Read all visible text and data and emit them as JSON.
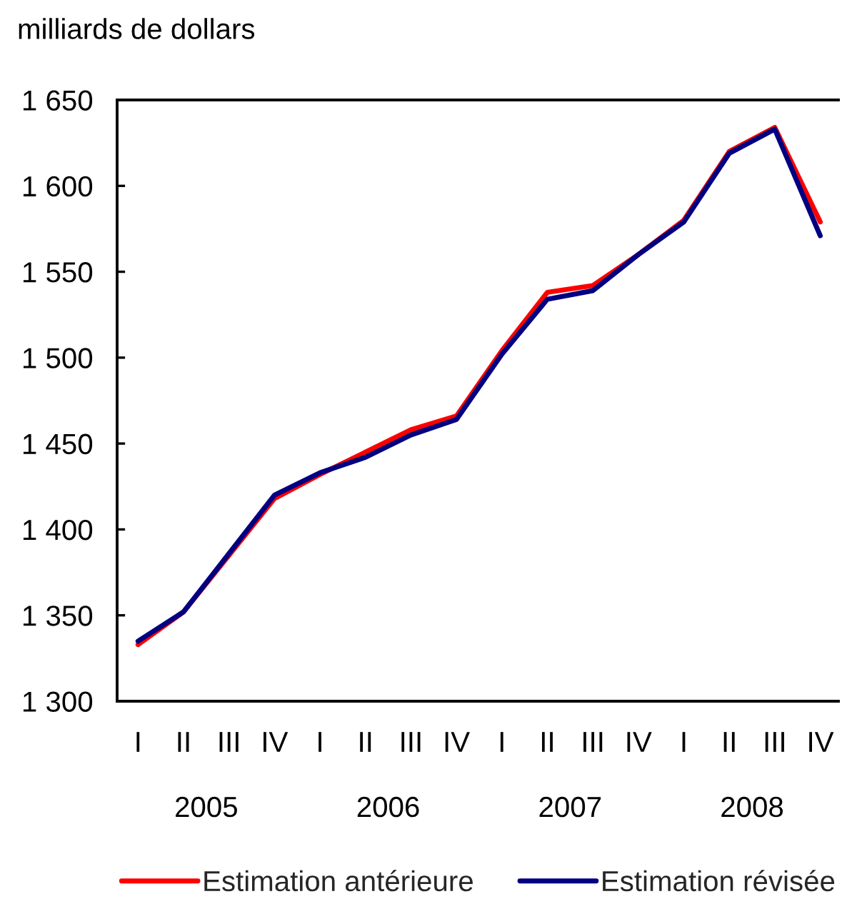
{
  "chart_data": {
    "type": "line",
    "ylabel": "milliards de dollars",
    "categories": [
      "I",
      "II",
      "III",
      "IV",
      "I",
      "II",
      "III",
      "IV",
      "I",
      "II",
      "III",
      "IV",
      "I",
      "II",
      "III",
      "IV"
    ],
    "annotations": [
      "2005",
      "2006",
      "2007",
      "2008"
    ],
    "series": [
      {
        "name": "Estimation antérieure",
        "color": "#ff0000",
        "values": [
          1333,
          1352,
          1385,
          1418,
          1432,
          1445,
          1458,
          1466,
          1504,
          1538,
          1542,
          1560,
          1580,
          1620,
          1634,
          1579
        ]
      },
      {
        "name": "Estimation révisée",
        "color": "#000080",
        "values": [
          1335,
          1352,
          1386,
          1420,
          1433,
          1442,
          1455,
          1464,
          1502,
          1534,
          1539,
          1560,
          1579,
          1619,
          1633,
          1571
        ]
      }
    ],
    "ylim": [
      1300,
      1650
    ],
    "yticks": [
      {
        "value": 1300,
        "label": "1 300"
      },
      {
        "value": 1350,
        "label": "1 350"
      },
      {
        "value": 1400,
        "label": "1 400"
      },
      {
        "value": 1450,
        "label": "1 450"
      },
      {
        "value": 1500,
        "label": "1 500"
      },
      {
        "value": 1550,
        "label": "1 550"
      },
      {
        "value": 1600,
        "label": "1 600"
      },
      {
        "value": 1650,
        "label": "1 650"
      }
    ],
    "legend": "bottom",
    "line_style": "solid"
  }
}
